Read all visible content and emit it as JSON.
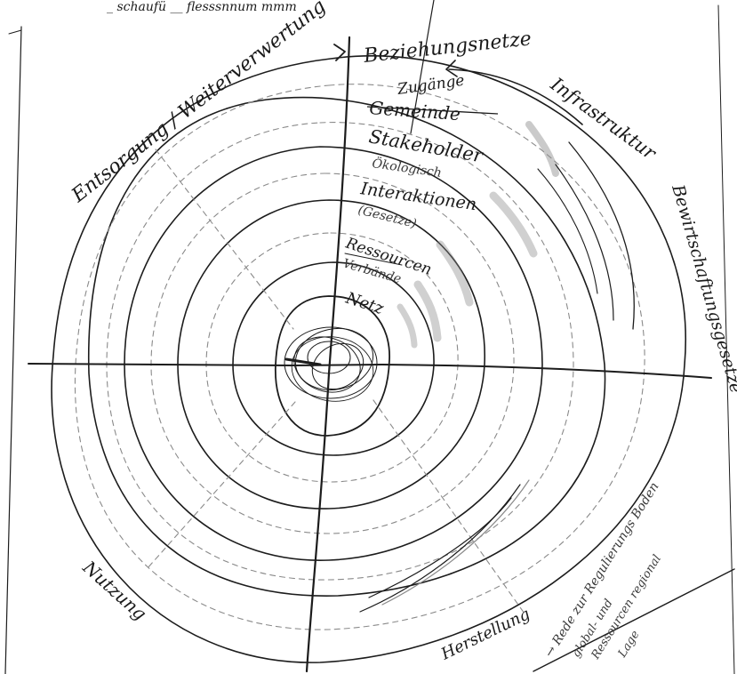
{
  "labels": {
    "top_left_scribble": "_ schaufü __ flesssnnum mmm",
    "axis_upper_left": "Entsorgung / Weiterverwertung",
    "axis_top_right": "Beziehungsnetze",
    "infrastructure": "Infrastruktur",
    "ring_1": "Zugänge",
    "ring_1_struck": "Gemeinde",
    "ring_2": "Stakeholder",
    "ring_2_sub": "Ökologisch",
    "ring_3": "Interaktionen",
    "ring_3_sub": "(Gesetze)",
    "ring_4": "Ressourcen",
    "ring_4_sub": "Verbände",
    "ring_5": "Netz",
    "right_side": "Bewirtschaftungsgesetze",
    "bottom_left": "Nutzung",
    "bottom_center": "Herstellung",
    "bottom_right_1": "→ Rede zur Regulierungs Boden",
    "bottom_right_2": "global- und",
    "bottom_right_3": "Ressourcen regional",
    "bottom_right_4": "Lage"
  },
  "colors": {
    "ink": "#1c1c1c",
    "pencil": "#8a8a8a",
    "paper": "#ffffff"
  }
}
